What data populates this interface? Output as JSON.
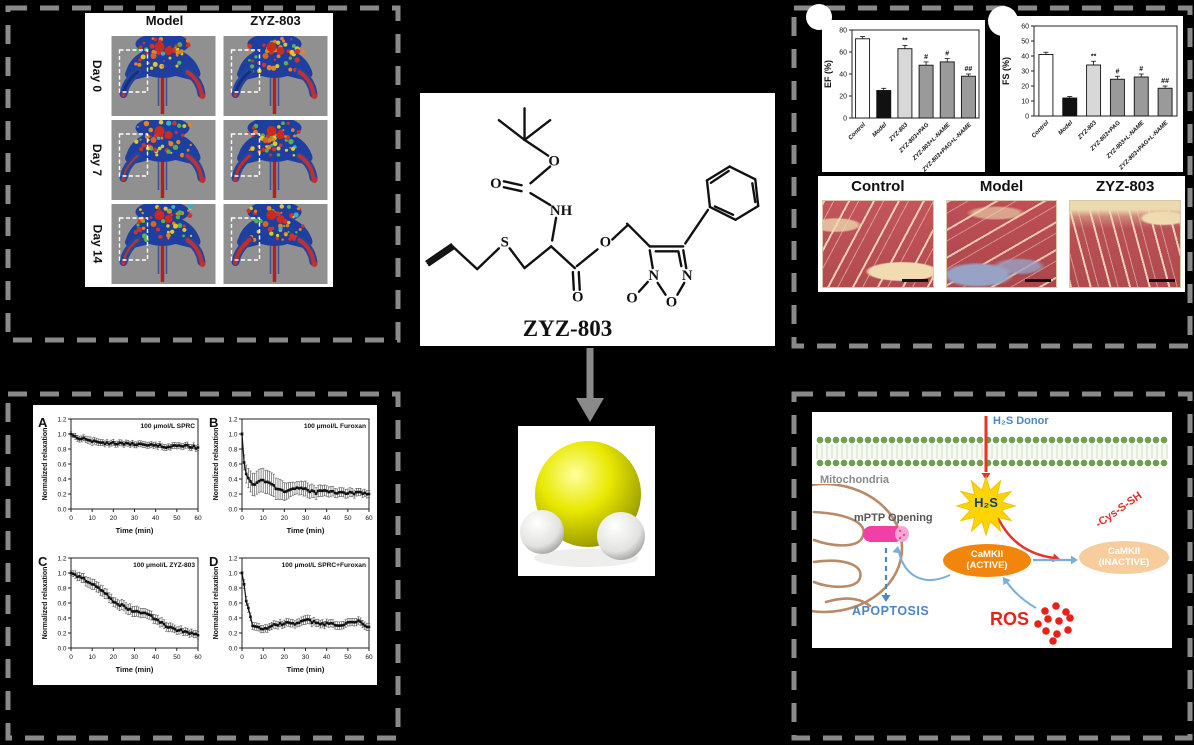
{
  "figure": {
    "imaging": {
      "col_headers": [
        "Model",
        "ZYZ-803"
      ],
      "row_labels": [
        "Day 0",
        "Day 7",
        "Day 14"
      ]
    },
    "compound": {
      "name": "ZYZ-803",
      "atom_labels": [
        "O",
        "O",
        "NH",
        "S",
        "O",
        "O",
        "N",
        "N",
        "O",
        "O"
      ]
    },
    "histology": {
      "labels": [
        "Control",
        "Model",
        "ZYZ-803"
      ]
    },
    "mechanism": {
      "h2s_donor": "H₂S Donor",
      "mitochondria": "Mitochondria",
      "mptp": "mPTP Opening",
      "h2s": "H₂S",
      "camkii_active_1": "CaMKII",
      "camkii_active_2": "(ACTIVE)",
      "camkii_inactive_1": "CaMKII",
      "camkii_inactive_2": "(INACTIVE)",
      "cys": "-Cys-S-SH",
      "apoptosis": "APOPTOSIS",
      "ros": "ROS"
    }
  },
  "chart_data": [
    {
      "id": "ef",
      "type": "bar",
      "ylabel": "EF (%)",
      "ylim": [
        0,
        80
      ],
      "yticks": [
        0,
        20,
        40,
        60,
        80
      ],
      "categories": [
        "Control",
        "Model",
        "ZYZ-803",
        "ZYZ-803+PAG",
        "ZYZ-803+L-NAME",
        "ZYZ-803+PAG+L-NAME"
      ],
      "values": [
        72,
        25,
        63,
        48,
        51,
        38
      ],
      "errors": [
        2,
        2,
        3,
        3,
        3,
        2
      ],
      "sig": [
        "",
        "",
        "**",
        "#",
        "#",
        "##"
      ],
      "bar_colors": [
        "#ffffff",
        "#111111",
        "#d8d8d8",
        "#9a9a9a",
        "#9a9a9a",
        "#9a9a9a"
      ]
    },
    {
      "id": "fs",
      "type": "bar",
      "ylabel": "FS (%)",
      "ylim": [
        0,
        60
      ],
      "yticks": [
        0,
        10,
        20,
        30,
        40,
        50,
        60
      ],
      "categories": [
        "Control",
        "Model",
        "ZYZ-803",
        "ZYZ-803+PAG",
        "ZYZ-803+L-NAME",
        "ZYZ-803+PAG+L-NAME"
      ],
      "values": [
        41,
        12,
        34,
        24.5,
        26,
        18.5
      ],
      "errors": [
        1.5,
        1,
        2.5,
        2,
        2,
        1.5
      ],
      "sig": [
        "",
        "",
        "**",
        "#",
        "#",
        "##"
      ],
      "bar_colors": [
        "#ffffff",
        "#111111",
        "#d8d8d8",
        "#9a9a9a",
        "#9a9a9a",
        "#9a9a9a"
      ]
    },
    {
      "id": "A",
      "type": "line",
      "letter": "A",
      "title": "100 μmol/L SPRC",
      "xlabel": "Time (min)",
      "ylabel": "Normalized relaxation",
      "xlim": [
        0,
        60
      ],
      "ylim": [
        0,
        1.2
      ],
      "xticks": [
        0,
        10,
        20,
        30,
        40,
        50,
        60
      ],
      "yticks": [
        0.0,
        0.2,
        0.4,
        0.6,
        0.8,
        1.0,
        1.2
      ],
      "x": [
        0,
        1,
        2,
        5,
        10,
        15,
        20,
        25,
        30,
        35,
        40,
        45,
        50,
        55,
        60
      ],
      "y": [
        1.0,
        0.98,
        0.96,
        0.94,
        0.9,
        0.88,
        0.88,
        0.87,
        0.87,
        0.86,
        0.85,
        0.83,
        0.85,
        0.84,
        0.82
      ],
      "err": [
        0.03,
        0.03,
        0.04,
        0.04,
        0.05,
        0.04,
        0.04,
        0.04,
        0.04,
        0.04,
        0.04,
        0.04,
        0.04,
        0.04,
        0.04
      ]
    },
    {
      "id": "B",
      "type": "line",
      "letter": "B",
      "title": "100 μmol/L Furoxan",
      "xlabel": "Time (min)",
      "ylabel": "Normalized relaxation",
      "xlim": [
        0,
        60
      ],
      "ylim": [
        0,
        1.2
      ],
      "xticks": [
        0,
        10,
        20,
        30,
        40,
        50,
        60
      ],
      "yticks": [
        0.0,
        0.2,
        0.4,
        0.6,
        0.8,
        1.0,
        1.2
      ],
      "x": [
        0,
        1,
        2,
        5,
        10,
        15,
        20,
        25,
        30,
        35,
        40,
        45,
        50,
        55,
        60
      ],
      "y": [
        1.0,
        0.62,
        0.45,
        0.33,
        0.38,
        0.3,
        0.22,
        0.27,
        0.26,
        0.22,
        0.24,
        0.22,
        0.22,
        0.21,
        0.2
      ],
      "err": [
        0.02,
        0.1,
        0.12,
        0.15,
        0.16,
        0.15,
        0.12,
        0.08,
        0.1,
        0.08,
        0.07,
        0.06,
        0.06,
        0.05,
        0.05
      ]
    },
    {
      "id": "C",
      "type": "line",
      "letter": "C",
      "title": "100 μmol/L ZYZ-803",
      "xlabel": "Time (min)",
      "ylabel": "Normalized relaxation",
      "xlim": [
        0,
        60
      ],
      "ylim": [
        0,
        1.2
      ],
      "xticks": [
        0,
        10,
        20,
        30,
        40,
        50,
        60
      ],
      "yticks": [
        0.0,
        0.2,
        0.4,
        0.6,
        0.8,
        1.0,
        1.2
      ],
      "x": [
        0,
        1,
        2,
        5,
        10,
        15,
        20,
        25,
        30,
        35,
        40,
        45,
        50,
        55,
        60
      ],
      "y": [
        1.0,
        0.99,
        0.98,
        0.93,
        0.86,
        0.76,
        0.62,
        0.55,
        0.48,
        0.47,
        0.38,
        0.3,
        0.24,
        0.21,
        0.17
      ],
      "err": [
        0.03,
        0.04,
        0.05,
        0.06,
        0.07,
        0.07,
        0.06,
        0.07,
        0.07,
        0.06,
        0.06,
        0.06,
        0.05,
        0.05,
        0.05
      ]
    },
    {
      "id": "D",
      "type": "line",
      "letter": "D",
      "title": "100 μmol/L SPRC+Furoxan",
      "xlabel": "Time (min)",
      "ylabel": "Normalized relaxation",
      "xlim": [
        0,
        60
      ],
      "ylim": [
        0,
        1.2
      ],
      "xticks": [
        0,
        10,
        20,
        30,
        40,
        50,
        60
      ],
      "yticks": [
        0.0,
        0.2,
        0.4,
        0.6,
        0.8,
        1.0,
        1.2
      ],
      "x": [
        0,
        1,
        2,
        5,
        10,
        15,
        20,
        25,
        30,
        35,
        40,
        45,
        50,
        55,
        60
      ],
      "y": [
        1.0,
        0.85,
        0.62,
        0.31,
        0.24,
        0.3,
        0.33,
        0.33,
        0.38,
        0.33,
        0.32,
        0.31,
        0.33,
        0.36,
        0.28
      ],
      "err": [
        0.02,
        0.06,
        0.06,
        0.05,
        0.05,
        0.05,
        0.05,
        0.05,
        0.06,
        0.05,
        0.05,
        0.05,
        0.05,
        0.05,
        0.05
      ]
    }
  ],
  "style": {
    "dash_border_color": "#8a8a8a",
    "accent_red": "#e8322a",
    "accent_blue": "#4a86c8",
    "camkii_active_color": "#f2860d",
    "camkii_inactive_color": "#f8cd9e",
    "mptp_pink": "#f23fa6",
    "h2s_yellow": "#ffd400",
    "membrane_green": "#6f9d52"
  }
}
